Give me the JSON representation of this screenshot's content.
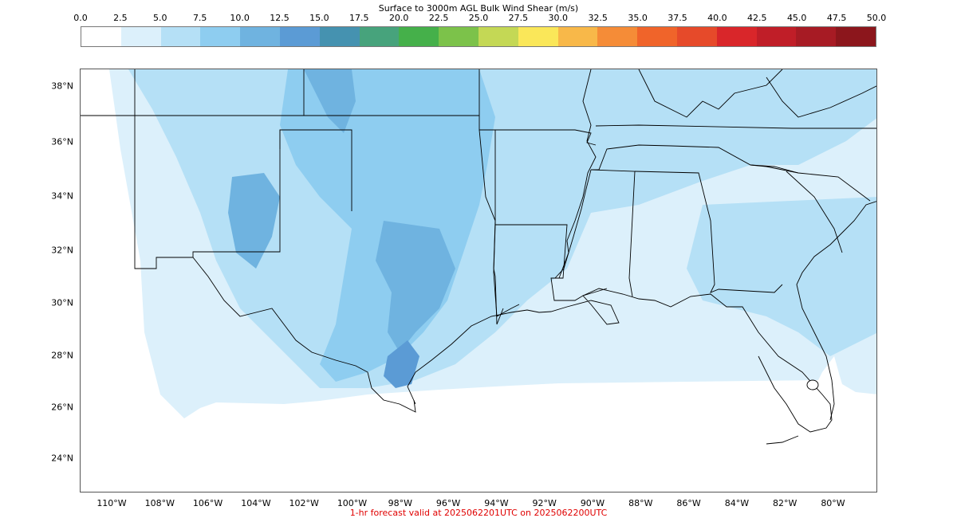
{
  "colorbar": {
    "title": "Surface to 3000m AGL Bulk Wind Shear (m/s)",
    "ticks": [
      "0.0",
      "2.5",
      "5.0",
      "7.5",
      "10.0",
      "12.5",
      "15.0",
      "17.5",
      "20.0",
      "22.5",
      "25.0",
      "27.5",
      "30.0",
      "32.5",
      "35.0",
      "37.5",
      "40.0",
      "42.5",
      "45.0",
      "47.5",
      "50.0"
    ],
    "colors": [
      "#ffffff",
      "#dcf0fb",
      "#b5e0f6",
      "#8ecdf0",
      "#6fb3e0",
      "#5b9bd5",
      "#4592b0",
      "#47a37c",
      "#45b04a",
      "#7cc24a",
      "#c4d855",
      "#fae759",
      "#f8b849",
      "#f58c37",
      "#f0642a",
      "#e64a2a",
      "#d9262a",
      "#c01e28",
      "#a71b24",
      "#8c161c"
    ]
  },
  "map": {
    "lat_labels": [
      "38°N",
      "36°N",
      "34°N",
      "32°N",
      "30°N",
      "28°N",
      "26°N",
      "24°N"
    ],
    "lon_labels": [
      "110°W",
      "108°W",
      "106°W",
      "104°W",
      "102°W",
      "100°W",
      "98°W",
      "96°W",
      "94°W",
      "92°W",
      "90°W",
      "88°W",
      "86°W",
      "84°W",
      "82°W",
      "80°W"
    ],
    "field_colors": {
      "light": "#dcf0fb",
      "medium": "#b5e0f6",
      "strong": "#8ecdf0",
      "stronger": "#6fb3e0",
      "strongest": "#5b9bd5"
    }
  },
  "footer": "1-hr forecast valid at 2025062201UTC on 2025062200UTC"
}
